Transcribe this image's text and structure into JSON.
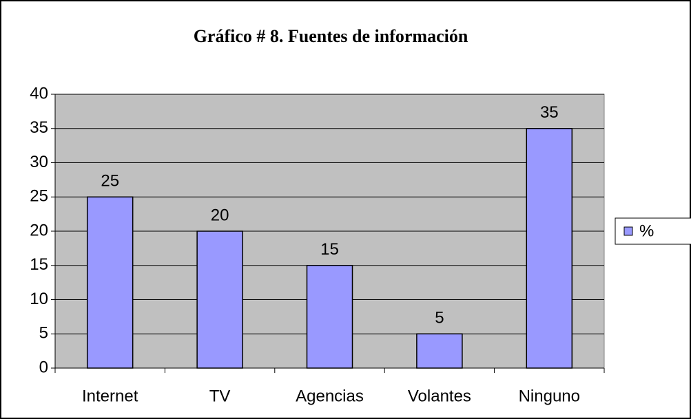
{
  "chart_data": {
    "type": "bar",
    "title": "Gráfico # 8. Fuentes de información",
    "categories": [
      "Internet",
      "TV",
      "Agencias",
      "Volantes",
      "Ninguno"
    ],
    "series": [
      {
        "name": "%",
        "color": "#9999ff",
        "values": [
          25,
          20,
          15,
          5,
          35
        ]
      }
    ],
    "ylim": [
      0,
      40
    ],
    "yticks": [
      0,
      5,
      10,
      15,
      20,
      25,
      30,
      35,
      40
    ],
    "grid": true,
    "legend": "right"
  }
}
